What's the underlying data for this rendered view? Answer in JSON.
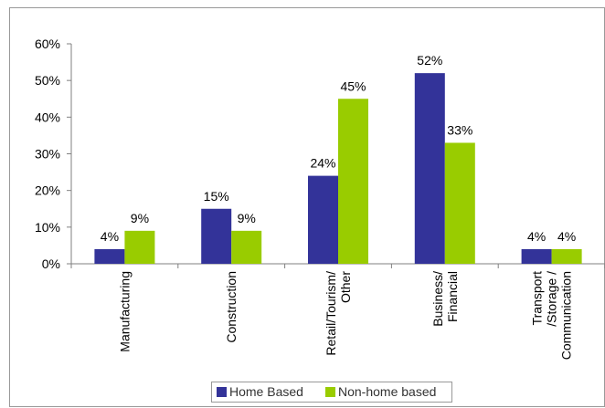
{
  "chart_data": {
    "type": "bar",
    "categories": [
      [
        "Manufacturing"
      ],
      [
        "Construction"
      ],
      [
        "Retail/Tourism/",
        "Other"
      ],
      [
        "Business/",
        "Financial"
      ],
      [
        "Transport",
        "/Storage /",
        "Communication"
      ]
    ],
    "series": [
      {
        "name": "Home Based",
        "color": "#333399",
        "values": [
          4,
          15,
          24,
          52,
          4
        ],
        "labels": [
          "4%",
          "15%",
          "24%",
          "52%",
          "4%"
        ]
      },
      {
        "name": "Non-home based",
        "color": "#99CC00",
        "values": [
          9,
          9,
          45,
          33,
          4
        ],
        "labels": [
          "9%",
          "9%",
          "45%",
          "33%",
          "4%"
        ]
      }
    ],
    "ylim": [
      0,
      60
    ],
    "yticks": [
      0,
      10,
      20,
      30,
      40,
      50,
      60
    ],
    "ytick_labels": [
      "0%",
      "10%",
      "20%",
      "30%",
      "40%",
      "50%",
      "60%"
    ],
    "ylabel": "",
    "xlabel": "",
    "grid": false,
    "legend": "bottom-center"
  }
}
